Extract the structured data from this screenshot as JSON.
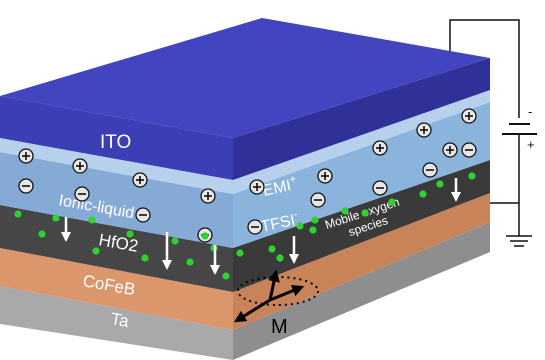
{
  "labels": {
    "ito": "ITO",
    "ionic_liquid": "Ionic-liquid",
    "emi": "EMI",
    "emi_charge": "+",
    "tfsi": "TFSI",
    "tfsi_charge": "-",
    "mobile_line1": "Mobile oxygen",
    "mobile_line2": "species",
    "hfo2": "HfO2",
    "cofeb": "CoFeB",
    "ta": "Ta",
    "magnetization": "M"
  },
  "circuit": {
    "plus_sign": "+",
    "minus_sign": "-"
  },
  "colors": {
    "ito_top": "#3e3fb8",
    "ito_front": "#3a3db2",
    "ionic_liquid": "#8fb5dc",
    "hfo2": "#454545",
    "cofeb": "#d9946a",
    "ta": "#a6a6a6",
    "oxygen_dot": "#2fd12f"
  },
  "icons": {
    "cation": "circled-plus-icon",
    "anion": "circled-minus-icon",
    "battery": "battery-icon",
    "ground": "ground-icon"
  }
}
